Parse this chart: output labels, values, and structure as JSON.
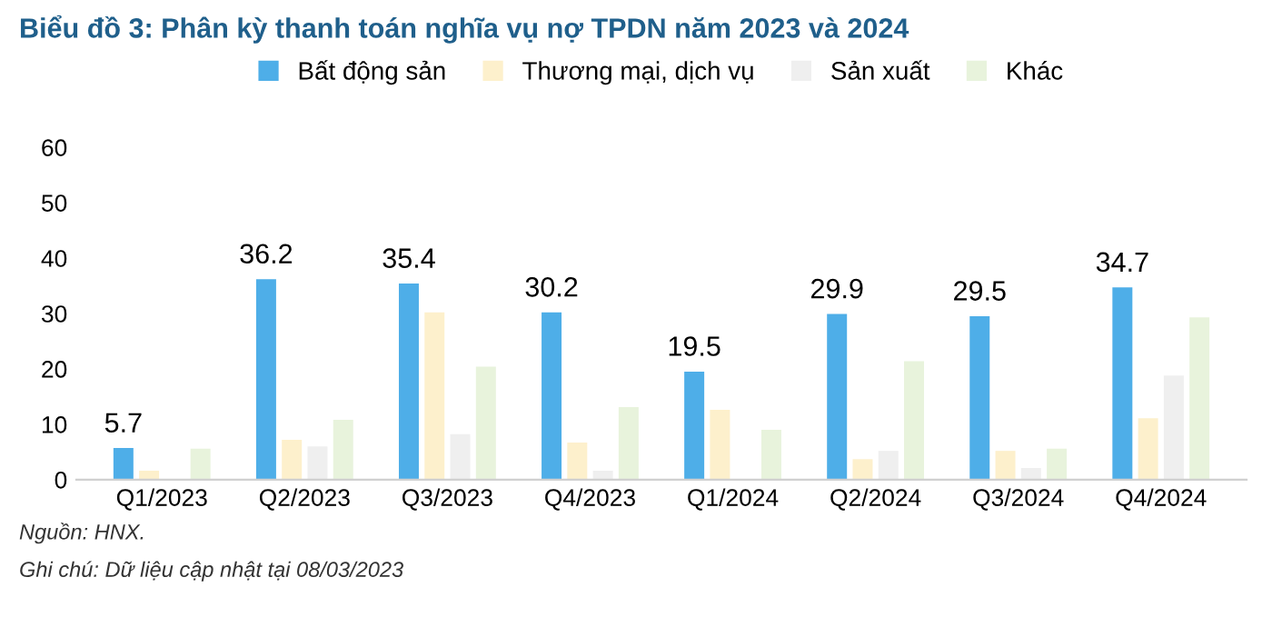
{
  "chart_data": {
    "type": "bar",
    "title": "Biểu đồ 3: Phân kỳ thanh toán nghĩa vụ nợ TPDN năm 2023 và 2024",
    "categories": [
      "Q1/2023",
      "Q2/2023",
      "Q3/2023",
      "Q4/2023",
      "Q1/2024",
      "Q2/2024",
      "Q3/2024",
      "Q4/2024"
    ],
    "series": [
      {
        "name": "Bất động sản",
        "color": "#4eaee8",
        "values": [
          5.7,
          36.2,
          35.4,
          30.2,
          19.5,
          29.9,
          29.5,
          34.7
        ],
        "value_labels": [
          "5.7",
          "36.2",
          "35.4",
          "30.2",
          "19.5",
          "29.9",
          "29.5",
          "34.7"
        ]
      },
      {
        "name": "Thương mại, dịch vụ",
        "color": "#fdf0cc",
        "values": [
          1.6,
          7.2,
          30.2,
          6.7,
          12.6,
          3.7,
          5.2,
          11.1
        ]
      },
      {
        "name": "Sản xuất",
        "color": "#efefef",
        "values": [
          0,
          6.0,
          8.2,
          1.6,
          0,
          5.2,
          2.1,
          18.8
        ]
      },
      {
        "name": "Khác",
        "color": "#e8f3dc",
        "values": [
          5.6,
          10.8,
          20.4,
          13.1,
          9.0,
          21.4,
          5.6,
          29.3
        ]
      }
    ],
    "ylim": [
      0,
      60
    ],
    "yticks": [
      0,
      10,
      20,
      30,
      40,
      50,
      60
    ],
    "grid": false,
    "legend": "top",
    "annotations": [
      "Nguồn: HNX.",
      "Ghi chú: Dữ liệu cập nhật tại 08/03/2023"
    ]
  }
}
